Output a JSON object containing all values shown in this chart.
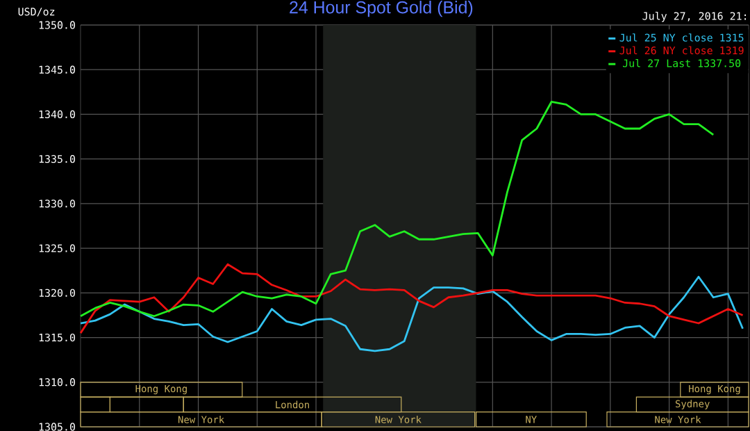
{
  "chart_data": {
    "type": "line",
    "title": "24 Hour Spot Gold (Bid)",
    "ylabel": "USD/oz",
    "annotations": [
      "July 27, 2016 21:",
      "New York",
      "New York",
      "NY",
      "New York",
      "London",
      "Sydney",
      "Hong Kong",
      "Hong Kong"
    ],
    "categories": [
      null,
      null,
      null,
      null,
      null,
      null,
      null,
      null,
      null,
      null,
      null,
      null,
      null,
      null,
      null,
      null,
      null,
      null,
      null,
      null,
      null,
      null,
      null,
      null,
      null,
      null,
      null,
      null,
      null,
      null,
      null,
      null,
      null,
      null,
      null,
      null,
      null,
      null,
      null,
      null,
      null,
      null,
      null,
      null,
      null,
      null
    ],
    "ylim": [
      1305,
      1350
    ],
    "yticks": [
      {
        "value": 1305,
        "label": "1305.0"
      },
      {
        "value": 1310,
        "label": "1310.0"
      },
      {
        "value": 1315,
        "label": "1315.0"
      },
      {
        "value": 1320,
        "label": "1320.0"
      },
      {
        "value": 1325,
        "label": "1325.0"
      },
      {
        "value": 1330,
        "label": "1330.0"
      },
      {
        "value": 1335,
        "label": "1335.0"
      },
      {
        "value": 1340,
        "label": "1340.0"
      },
      {
        "value": 1345,
        "label": "1345.0"
      },
      {
        "value": 1350,
        "label": "1350.0"
      }
    ],
    "grid": true,
    "legend": "top right",
    "tick_labels": "y",
    "series": [
      {
        "name": "Jul 25 NY close 1315",
        "color": "#33c3f0",
        "values": [
          1316.6,
          1316.9,
          1317.6,
          1318.7,
          1317.9,
          1317.1,
          1316.8,
          1316.4,
          1316.5,
          1315.1,
          1314.5,
          1315.1,
          1315.7,
          1318.2,
          1316.8,
          1316.4,
          1317.0,
          1317.1,
          1316.3,
          1313.7,
          1313.5,
          1313.7,
          1314.6,
          1319.4,
          1320.6,
          1320.6,
          1320.5,
          1319.9,
          1320.2,
          1319.0,
          1317.3,
          1315.7,
          1314.7,
          1315.4,
          1315.4,
          1315.3,
          1315.4,
          1316.1,
          1316.3,
          1315,
          1317.6,
          1319.5,
          1321.8,
          1319.5,
          1319.9,
          1316
        ]
      },
      {
        "name": "Jul 26 NY close 1319",
        "color": "#ee1111",
        "values": [
          1315.5,
          1318,
          1319.2,
          1319.1,
          1319,
          1319.5,
          1317.9,
          1319.5,
          1321.7,
          1321,
          1323.2,
          1322.2,
          1322.1,
          1320.9,
          1320.3,
          1319.6,
          1319.6,
          1320.2,
          1321.5,
          1320.4,
          1320.3,
          1320.4,
          1320.3,
          1319.1,
          1318.4,
          1319.5,
          1319.7,
          1320,
          1320.3,
          1320.3,
          1319.9,
          1319.7,
          1319.7,
          1319.7,
          1319.7,
          1319.7,
          1319.4,
          1318.9,
          1318.8,
          1318.5,
          1317.4,
          1317,
          1316.6,
          1317.4,
          1318.2,
          1317.5
        ]
      },
      {
        "name": "Jul 27 Last 1337.50",
        "color": "#22ee22",
        "values": [
          1317.4,
          1318.3,
          1318.9,
          1318.5,
          1317.9,
          1317.4,
          1318,
          1318.7,
          1318.6,
          1317.9,
          1319,
          1320.1,
          1319.6,
          1319.4,
          1319.8,
          1319.6,
          1318.8,
          1322.1,
          1322.5,
          1326.9,
          1327.6,
          1326.3,
          1326.9,
          1326,
          1326,
          1326.3,
          1326.6,
          1326.7,
          1324.2,
          1331.3,
          1337.1,
          1338.4,
          1341.4,
          1341.1,
          1340,
          1340,
          1339.2,
          1338.4,
          1338.4,
          1339.5,
          1340,
          1338.9,
          1338.9,
          1337.7,
          null,
          null
        ]
      }
    ]
  }
}
